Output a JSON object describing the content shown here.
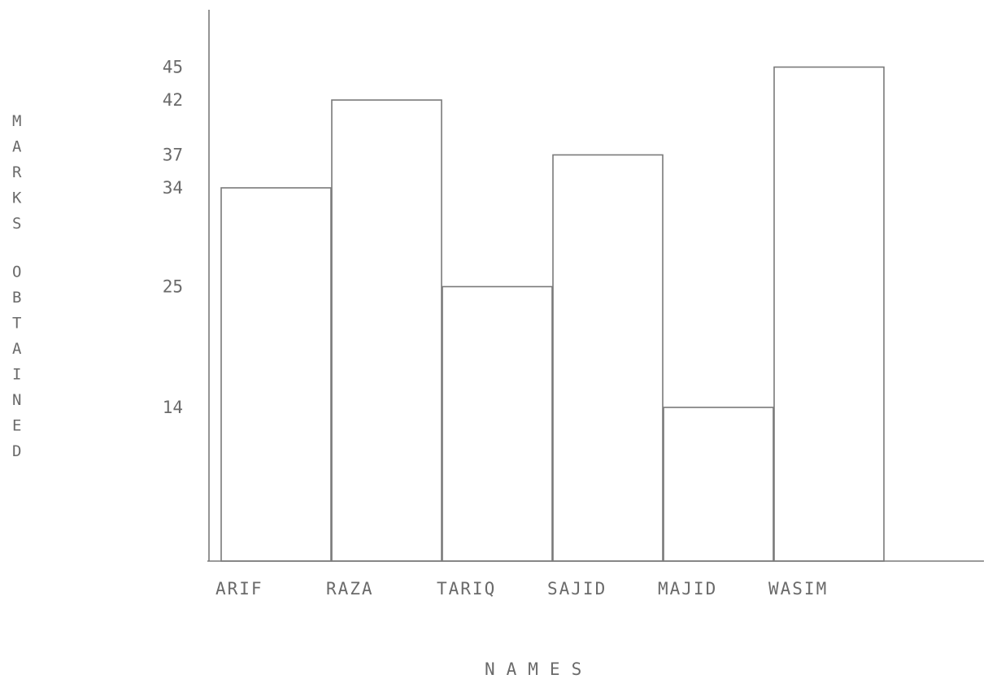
{
  "chart_data": {
    "type": "bar",
    "categories": [
      "ARIF",
      "RAZA",
      "TARIQ",
      "SAJID",
      "MAJID",
      "WASIM"
    ],
    "values": [
      34,
      42,
      25,
      37,
      14,
      45
    ],
    "ytick_labels": [
      "45",
      "42",
      "37",
      "34",
      "25",
      "14"
    ],
    "xlabel": "NAMES",
    "ylabel_lines": [
      "MARKS",
      "OBTAINED"
    ],
    "ylim": [
      0,
      48
    ],
    "grid": false,
    "colors": {
      "bar_fill": "#ffffff",
      "bar_stroke": "#7a7a7a",
      "text": "#6a6a6a"
    }
  }
}
